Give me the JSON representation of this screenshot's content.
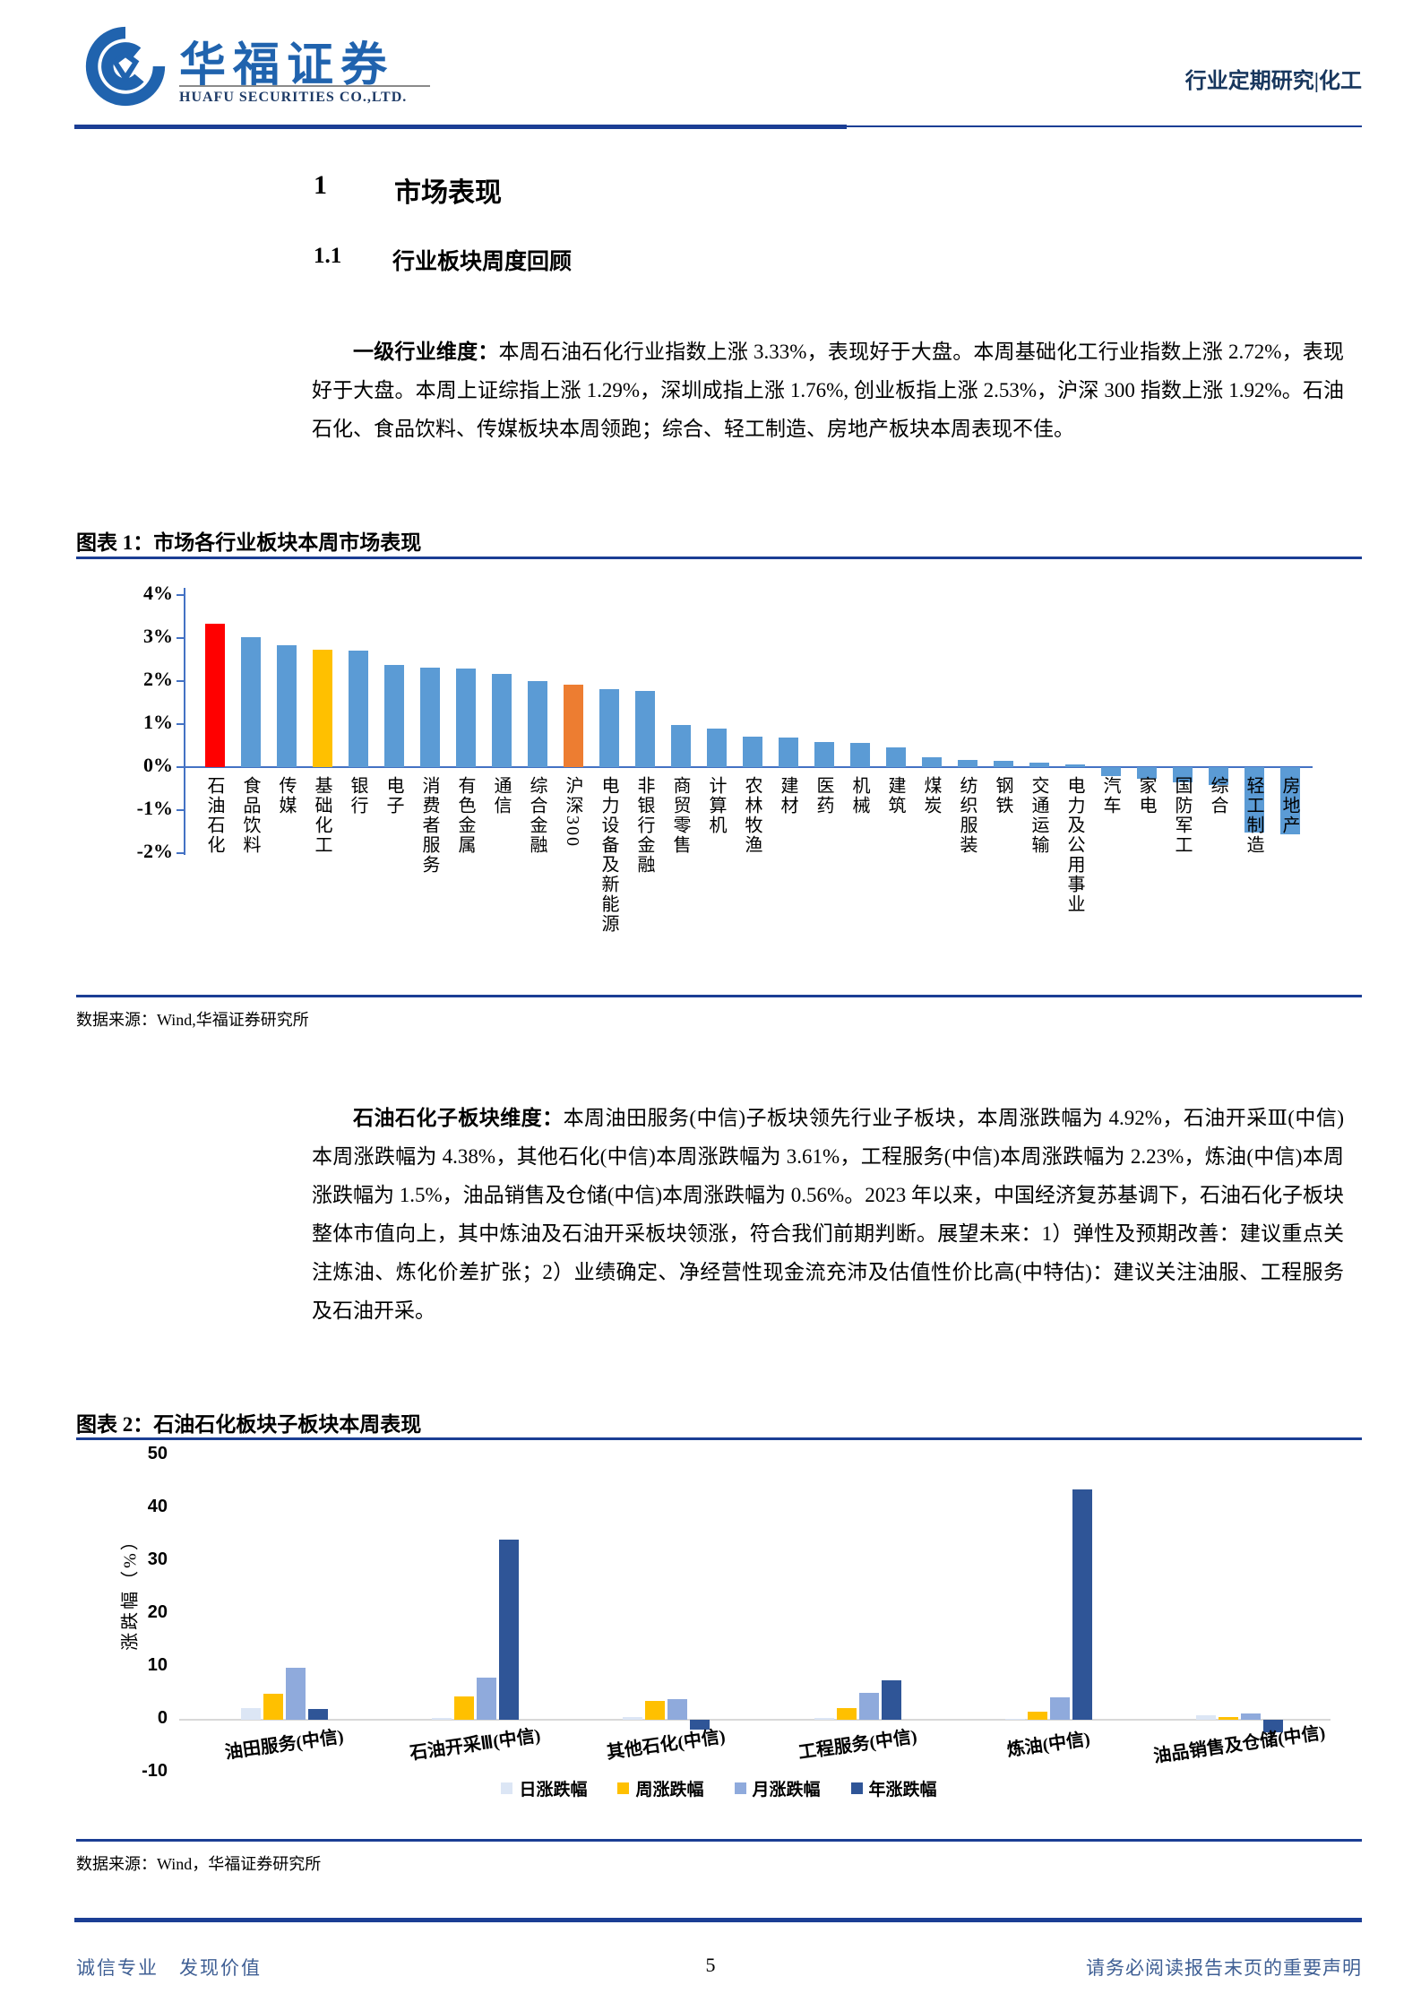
{
  "header": {
    "logo_cn": "华福证券",
    "logo_en": "HUAFU SECURITIES CO.,LTD.",
    "doc_type": "行业定期研究|化工"
  },
  "sections": {
    "h1_num": "1",
    "h1_title": "市场表现",
    "h2_num": "1.1",
    "h2_title": "行业板块周度回顾"
  },
  "para1": {
    "lead": "一级行业维度：",
    "body": "本周石油石化行业指数上涨 3.33%，表现好于大盘。本周基础化工行业指数上涨 2.72%，表现好于大盘。本周上证综指上涨 1.29%，深圳成指上涨 1.76%, 创业板指上涨 2.53%，沪深 300 指数上涨 1.92%。石油石化、食品饮料、传媒板块本周领跑；综合、轻工制造、房地产板块本周表现不佳。"
  },
  "figure1": {
    "title": "图表 1：市场各行业板块本周市场表现",
    "source": "数据来源：Wind,华福证券研究所"
  },
  "para2": {
    "lead": "石油石化子板块维度：",
    "body": "本周油田服务(中信)子板块领先行业子板块，本周涨跌幅为 4.92%，石油开采Ⅲ(中信)本周涨跌幅为 4.38%，其他石化(中信)本周涨跌幅为 3.61%，工程服务(中信)本周涨跌幅为 2.23%，炼油(中信)本周涨跌幅为 1.5%，油品销售及仓储(中信)本周涨跌幅为 0.56%。2023 年以来，中国经济复苏基调下，石油石化子板块整体市值向上，其中炼油及石油开采板块领涨，符合我们前期判断。展望未来：1）弹性及预期改善：建议重点关注炼油、炼化价差扩张；2）业绩确定、净经营性现金流充沛及估值性价比高(中特估)：建议关注油服、工程服务及石油开采。"
  },
  "figure2": {
    "title": "图表 2：石油石化板块子板块本周表现",
    "source": "数据来源：Wind，华福证券研究所"
  },
  "footer": {
    "left": "诚信专业　发现价值",
    "page": "5",
    "right": "请务必阅读报告末页的重要声明"
  },
  "chart_data": [
    {
      "type": "bar",
      "title": "市场各行业板块本周市场表现",
      "ylabel": "",
      "unit": "%",
      "ylim": [
        -2,
        4
      ],
      "yticks": [
        "4%",
        "3%",
        "2%",
        "1%",
        "0%",
        "-1%",
        "-2%"
      ],
      "grid": false,
      "axis_color": "#4472C4",
      "default_color": "#5B9BD5",
      "highlight_colors": {
        "0": "#FF0000",
        "3": "#FFC000",
        "10": "#ED7D31"
      },
      "categories": [
        "石油石化",
        "食品饮料",
        "传媒",
        "基础化工",
        "银行",
        "电子",
        "消费者服务",
        "有色金属",
        "通信",
        "综合金融",
        "沪深300",
        "电力设备及新能源",
        "非银行金融",
        "商贸零售",
        "计算机",
        "农林牧渔",
        "建材",
        "医药",
        "机械",
        "建筑",
        "煤炭",
        "纺织服装",
        "钢铁",
        "交通运输",
        "电力及公用事业",
        "汽车",
        "家电",
        "国防军工",
        "综合",
        "轻工制造",
        "房地产"
      ],
      "values": [
        3.33,
        3.02,
        2.84,
        2.72,
        2.7,
        2.38,
        2.32,
        2.29,
        2.16,
        2.0,
        1.92,
        1.81,
        1.78,
        0.97,
        0.9,
        0.71,
        0.68,
        0.59,
        0.57,
        0.45,
        0.23,
        0.16,
        0.15,
        0.11,
        0.06,
        -0.2,
        -0.28,
        -0.35,
        -0.42,
        -1.52,
        -1.56
      ]
    },
    {
      "type": "bar",
      "title": "石油石化板块子板块本周表现",
      "ylabel": "涨跌幅（%）",
      "ylim": [
        -10,
        50
      ],
      "yticks": [
        50,
        40,
        30,
        20,
        10,
        0,
        -10
      ],
      "grid": false,
      "legend_position": "bottom",
      "categories": [
        "油田服务(中信)",
        "石油开采Ⅲ(中信)",
        "其他石化(中信)",
        "工程服务(中信)",
        "炼油(中信)",
        "油品销售及仓储(中信)"
      ],
      "series": [
        {
          "name": "日涨跌幅",
          "color": "#DCE6F5",
          "values": [
            2.2,
            0.3,
            0.5,
            0.4,
            0.1,
            0.9
          ]
        },
        {
          "name": "周涨跌幅",
          "color": "#FFC000",
          "values": [
            4.92,
            4.38,
            3.61,
            2.23,
            1.5,
            0.56
          ]
        },
        {
          "name": "月涨跌幅",
          "color": "#8FAADC",
          "values": [
            9.8,
            8.0,
            3.9,
            5.1,
            4.2,
            1.2
          ]
        },
        {
          "name": "年涨跌幅",
          "color": "#2F5597",
          "values": [
            2.0,
            34.0,
            -1.8,
            7.5,
            43.5,
            -2.3
          ]
        }
      ]
    }
  ]
}
